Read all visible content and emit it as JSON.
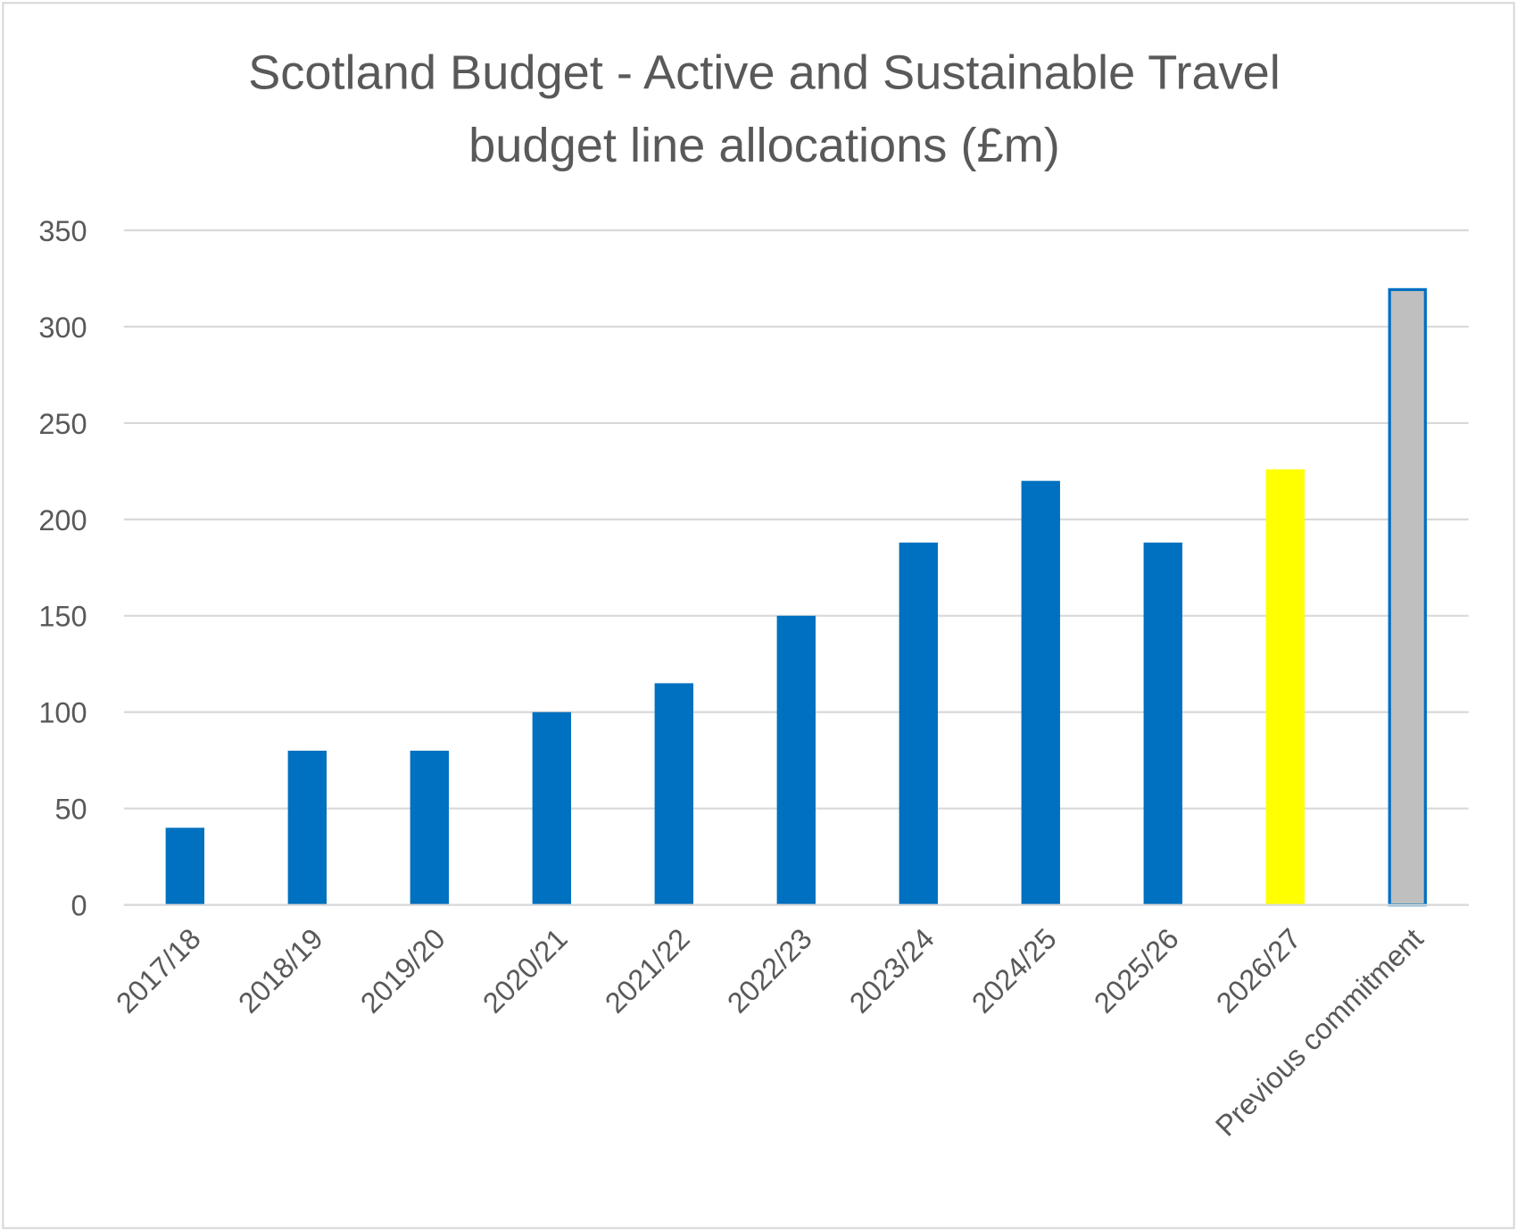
{
  "chart_data": {
    "type": "bar",
    "title": [
      "Scotland Budget - Active and Sustainable Travel",
      "budget line allocations (£m)"
    ],
    "xlabel": "",
    "ylabel": "",
    "ylim": [
      0,
      350
    ],
    "yticks": [
      0,
      50,
      100,
      150,
      200,
      250,
      300,
      350
    ],
    "grid": true,
    "legend": "none",
    "categories": [
      "2017/18",
      "2018/19",
      "2019/20",
      "2020/21",
      "2021/22",
      "2022/23",
      "2023/24",
      "2024/25",
      "2025/26",
      "2026/27",
      "Previous commitment"
    ],
    "values": [
      40,
      80,
      80,
      100,
      115,
      150,
      188,
      220,
      188,
      226,
      320
    ],
    "colors": [
      "#0070C0",
      "#0070C0",
      "#0070C0",
      "#0070C0",
      "#0070C0",
      "#0070C0",
      "#0070C0",
      "#0070C0",
      "#0070C0",
      "#FFFF00",
      "#BFBFBF"
    ],
    "outline": [
      "",
      "",
      "",
      "",
      "",
      "",
      "",
      "",
      "",
      "",
      "#0070C0"
    ]
  }
}
